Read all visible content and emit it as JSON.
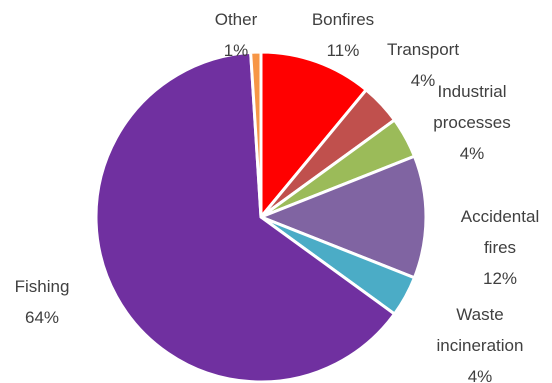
{
  "chart_data": {
    "type": "pie",
    "title": "",
    "slices": [
      {
        "label": "Bonfires",
        "value": 11,
        "display": "11%",
        "color": "#ff0000"
      },
      {
        "label": "Transport",
        "value": 4,
        "display": "4%",
        "color": "#c0504d"
      },
      {
        "label": "Industrial processes",
        "value": 4,
        "display": "4%",
        "color": "#9bbb59"
      },
      {
        "label": "Accidental fires",
        "value": 12,
        "display": "12%",
        "color": "#8064a2"
      },
      {
        "label": "Waste incineration",
        "value": 4,
        "display": "4%",
        "color": "#4bacc6"
      },
      {
        "label": "Fishing",
        "value": 64,
        "display": "64%",
        "color": "#7030a0"
      },
      {
        "label": "Other",
        "value": 1,
        "display": "1%",
        "color": "#f79646"
      }
    ],
    "legend": "none",
    "data_labels": "outside"
  }
}
